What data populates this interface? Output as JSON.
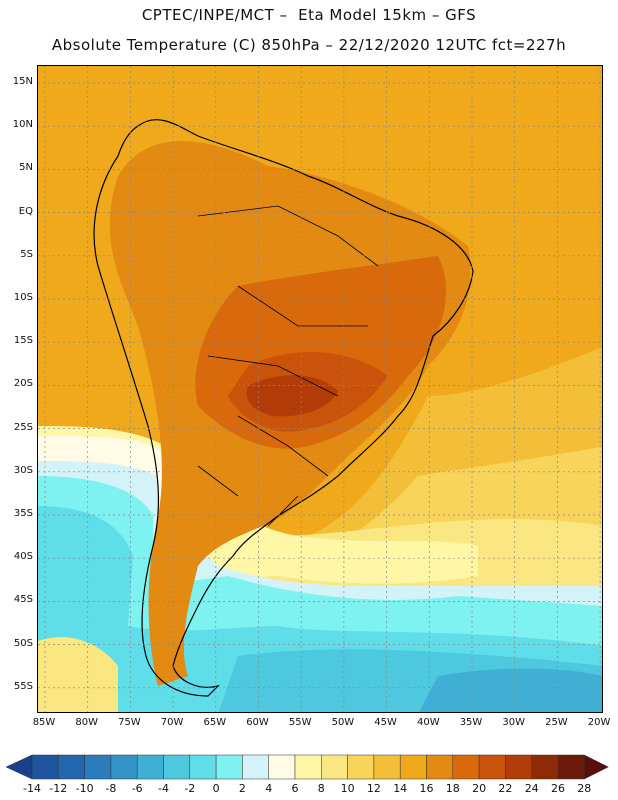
{
  "header": {
    "line1": "CPTEC/INPE/MCT –  Eta Model 15km – GFS",
    "line2": "Absolute Temperature (C) 850hPa – 22/12/2020 12UTC fct=227h"
  },
  "map": {
    "lat_labels": [
      "15N",
      "10N",
      "5N",
      "EQ",
      "5S",
      "10S",
      "15S",
      "20S",
      "25S",
      "30S",
      "35S",
      "40S",
      "45S",
      "50S",
      "55S"
    ],
    "lon_labels": [
      "85W",
      "80W",
      "75W",
      "70W",
      "65W",
      "60W",
      "55W",
      "50W",
      "45W",
      "40W",
      "35W",
      "30W",
      "25W",
      "20W"
    ],
    "gridlines": true
  },
  "colorbar": {
    "levels": [
      "-14",
      "-12",
      "-10",
      "-8",
      "-6",
      "-4",
      "-2",
      "0",
      "2",
      "4",
      "6",
      "8",
      "10",
      "12",
      "14",
      "16",
      "18",
      "20",
      "22",
      "24",
      "26",
      "28"
    ],
    "colors": [
      "#1c3f8c",
      "#1f55a0",
      "#2367b0",
      "#2a7cbc",
      "#3393c6",
      "#3fb0d4",
      "#4dc8df",
      "#5fdde8",
      "#7df2f0",
      "#d4f3f8",
      "#fffbe6",
      "#fff6a6",
      "#fbe782",
      "#f8d45a",
      "#f3bf39",
      "#f0a91b",
      "#e38a13",
      "#d96a0b",
      "#c9530a",
      "#b13c08",
      "#8f2a07",
      "#6e1a0b",
      "#5a0d0d"
    ]
  }
}
